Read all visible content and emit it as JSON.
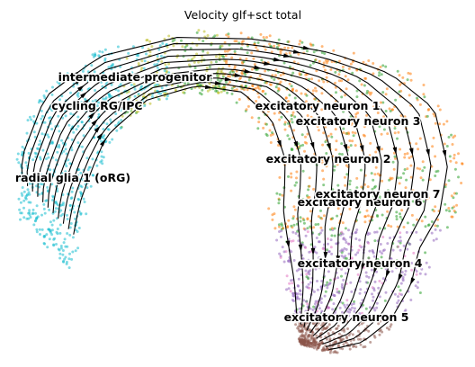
{
  "chart_data": {
    "type": "scatter",
    "title": "Velocity glf+sct total",
    "xlabel": "",
    "ylabel": "",
    "grid": false,
    "axes_visible": false,
    "overlay": "velocity streamlines with arrowheads",
    "clusters": [
      {
        "name": "cycling RG/IPC",
        "color": "#17becf"
      },
      {
        "name": "radial glia 1 (oRG)",
        "color": "#17becf"
      },
      {
        "name": "intermediate progenitor",
        "color": "#bcbd22"
      },
      {
        "name": "excitatory neuron 1",
        "color": "#2ca02c"
      },
      {
        "name": "excitatory neuron 2",
        "color": "#ff7f0e"
      },
      {
        "name": "excitatory neuron 3",
        "color": "#ff7f0e"
      },
      {
        "name": "excitatory neuron 4",
        "color": "#9467bd"
      },
      {
        "name": "excitatory neuron 5",
        "color": "#8c564b"
      },
      {
        "name": "excitatory neuron 6",
        "color": "#e377c2"
      },
      {
        "name": "excitatory neuron 7",
        "color": "#2ca02c"
      }
    ]
  }
}
